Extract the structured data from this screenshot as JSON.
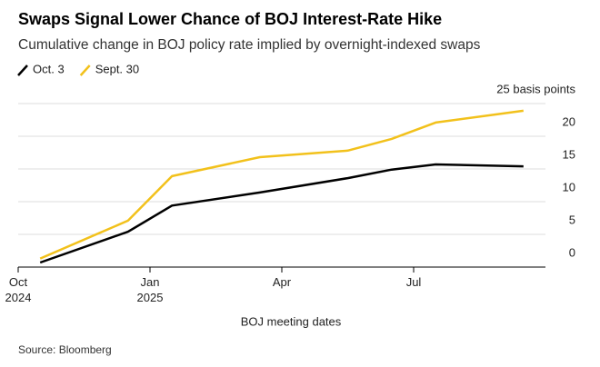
{
  "chart_data": {
    "type": "line",
    "title": "Swaps Signal Lower Chance of BOJ Interest-Rate Hike",
    "subtitle": "Cumulative change in BOJ policy rate implied by overnight-indexed swaps",
    "x_label": "BOJ meeting dates",
    "source": "Source: Bloomberg",
    "x": [
      "2024-10",
      "2024-12",
      "2025-01",
      "2025-03",
      "2025-05",
      "2025-06",
      "2025-07",
      "2025-09"
    ],
    "series": [
      {
        "name": "Oct. 3",
        "color": "#000000",
        "values": [
          0.7,
          5.4,
          9.4,
          11.4,
          13.6,
          14.9,
          15.7,
          15.4
        ]
      },
      {
        "name": "Sept. 30",
        "color": "#f2c11b",
        "values": [
          1.3,
          7.1,
          13.9,
          16.8,
          17.8,
          19.6,
          22.1,
          23.9
        ]
      }
    ],
    "xlim": [
      "2024-10",
      "2025-10"
    ],
    "xticks": [
      {
        "value": "2024-10",
        "label": "Oct\n2024"
      },
      {
        "value": "2025-01",
        "label": "Jan\n2025"
      },
      {
        "value": "2025-04",
        "label": "Apr"
      },
      {
        "value": "2025-07",
        "label": "Jul"
      }
    ],
    "ylim": [
      0,
      25
    ],
    "yticks": [
      0,
      5,
      10,
      15,
      20,
      {
        "value": 25,
        "label": "25 basis points"
      }
    ],
    "grid": true,
    "legend": "top-left"
  }
}
